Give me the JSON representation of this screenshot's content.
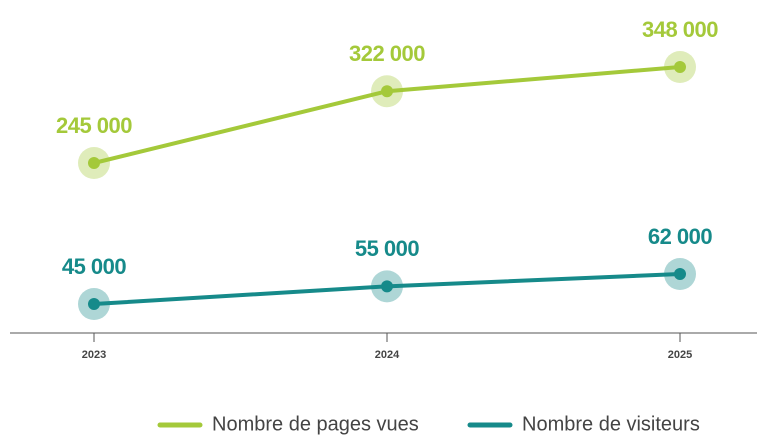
{
  "chart_data": {
    "type": "line",
    "categories": [
      "2023",
      "2024",
      "2025"
    ],
    "series": [
      {
        "name": "Nombre de pages vues",
        "color": "#a4c93a",
        "values": [
          245000,
          322000,
          348000
        ],
        "value_labels": [
          "245 000",
          "322 000",
          "348 000"
        ]
      },
      {
        "name": "Nombre de visiteurs",
        "color": "#168a8a",
        "values": [
          45000,
          55000,
          62000
        ],
        "value_labels": [
          "45 000",
          "55 000",
          "62 000"
        ]
      }
    ],
    "legend": "bottom"
  }
}
